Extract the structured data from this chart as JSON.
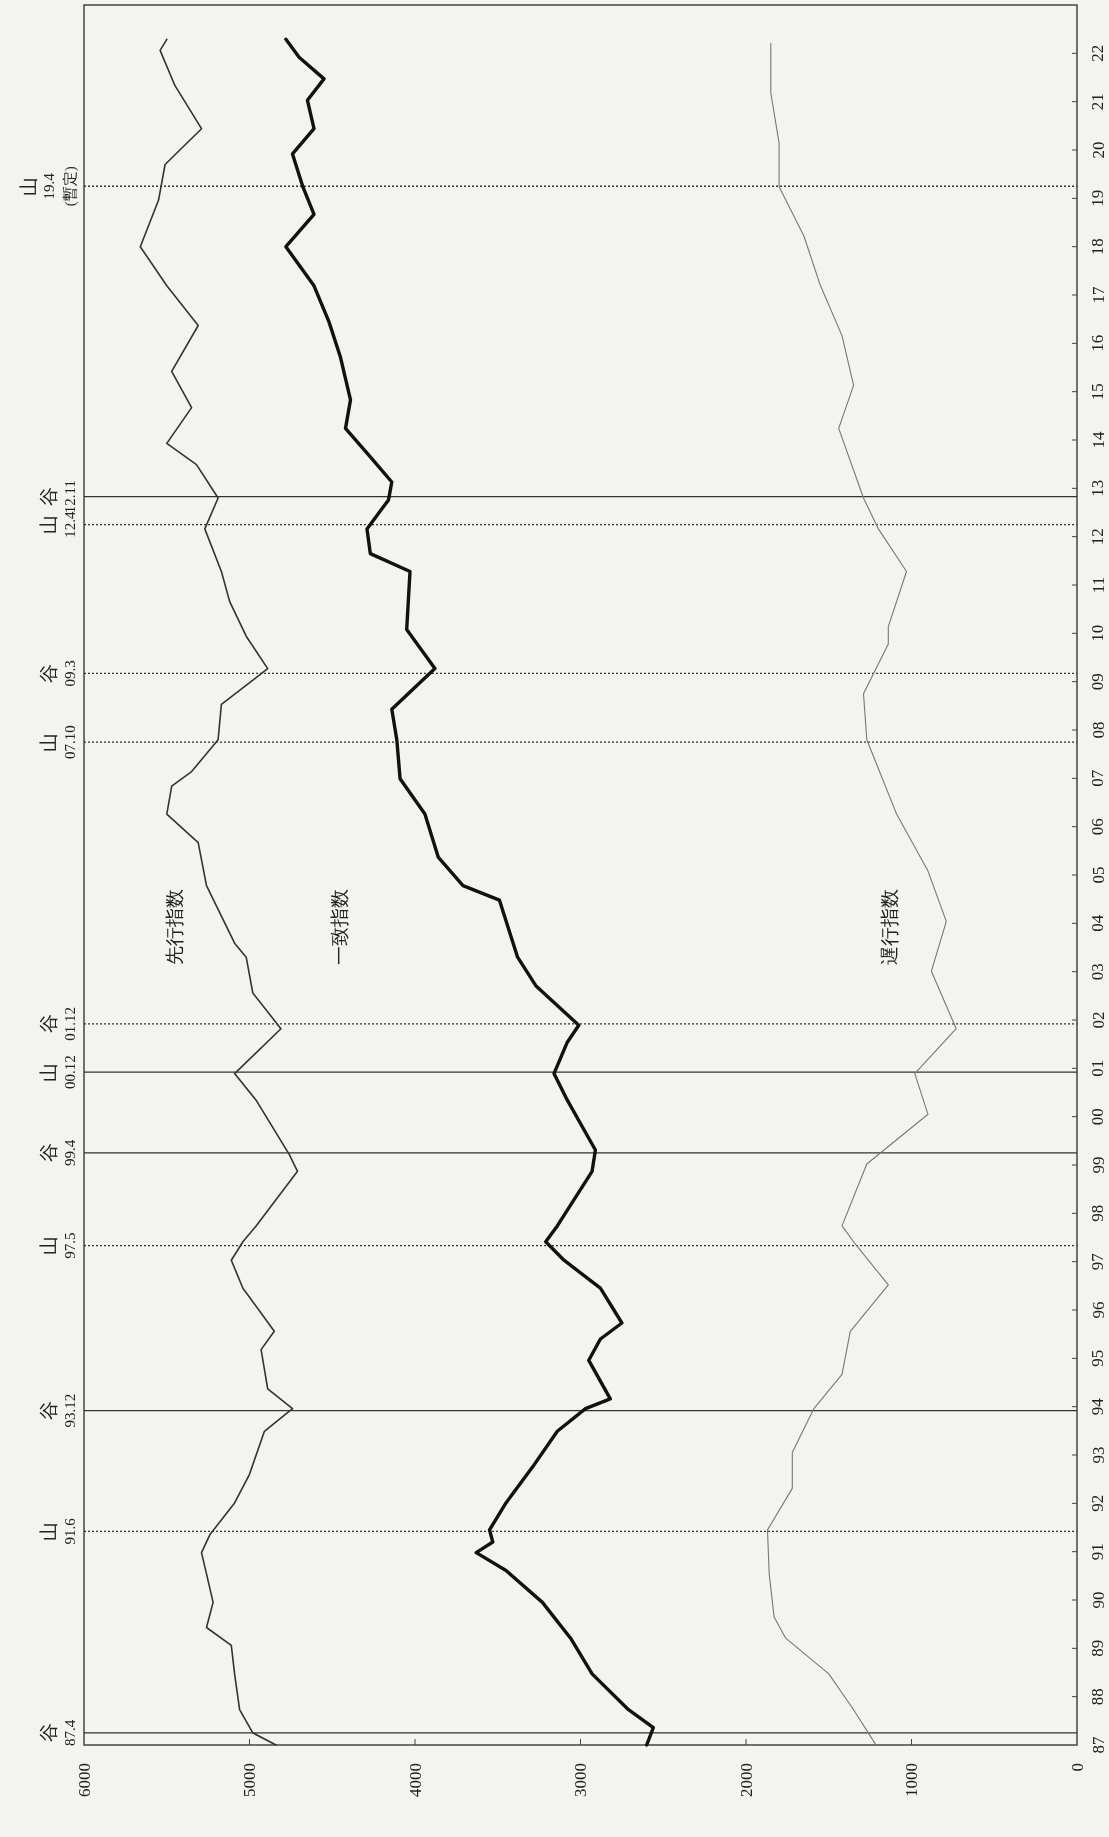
{
  "chart_data": {
    "type": "line",
    "xlim": [
      6000,
      0
    ],
    "xticks": [
      6000,
      5000,
      4000,
      3000,
      2000,
      1000,
      0
    ],
    "ylim": [
      1987,
      2023
    ],
    "yticks": [
      {
        "value": 1987,
        "label": "87"
      },
      {
        "value": 1988,
        "label": "88"
      },
      {
        "value": 1989,
        "label": "89"
      },
      {
        "value": 1990,
        "label": "90"
      },
      {
        "value": 1991,
        "label": "91"
      },
      {
        "value": 1992,
        "label": "92"
      },
      {
        "value": 1993,
        "label": "93"
      },
      {
        "value": 1994,
        "label": "94"
      },
      {
        "value": 1995,
        "label": "95"
      },
      {
        "value": 1996,
        "label": "96"
      },
      {
        "value": 1997,
        "label": "97"
      },
      {
        "value": 1998,
        "label": "98"
      },
      {
        "value": 1999,
        "label": "99"
      },
      {
        "value": 2000,
        "label": "00"
      },
      {
        "value": 2001,
        "label": "01"
      },
      {
        "value": 2002,
        "label": "02"
      },
      {
        "value": 2003,
        "label": "03"
      },
      {
        "value": 2004,
        "label": "04"
      },
      {
        "value": 2005,
        "label": "05"
      },
      {
        "value": 2006,
        "label": "06"
      },
      {
        "value": 2007,
        "label": "07"
      },
      {
        "value": 2008,
        "label": "08"
      },
      {
        "value": 2009,
        "label": "09"
      },
      {
        "value": 2010,
        "label": "10"
      },
      {
        "value": 2011,
        "label": "11"
      },
      {
        "value": 2012,
        "label": "12"
      },
      {
        "value": 2013,
        "label": "13"
      },
      {
        "value": 2014,
        "label": "14"
      },
      {
        "value": 2015,
        "label": "15"
      },
      {
        "value": 2016,
        "label": "16"
      },
      {
        "value": 2017,
        "label": "17"
      },
      {
        "value": 2018,
        "label": "18"
      },
      {
        "value": 2019,
        "label": "19"
      },
      {
        "value": 2020,
        "label": "20"
      },
      {
        "value": 2021,
        "label": "21"
      },
      {
        "value": 2022,
        "label": "22"
      }
    ],
    "grid": false,
    "legend": false,
    "marker": "none",
    "line_style": "solid",
    "series": [
      {
        "name": "先行指数",
        "color": "#333333",
        "values": [
          1987.0,
          1987.25,
          1987.73,
          1988.47,
          1989.06,
          1989.43,
          1989.95,
          1990.54,
          1990.98,
          1991.35,
          1992.01,
          1992.6,
          1993.49,
          1993.96,
          1994.37,
          1995.18,
          1995.56,
          1996.45,
          1997.03,
          1997.41,
          1997.74,
          1998.87,
          1999.22,
          2000.34,
          2000.89,
          2001.82,
          2002.56,
          2003.3,
          2003.59,
          2004.78,
          2005.67,
          2006.26,
          2006.84,
          2007.14,
          2007.8,
          2008.53,
          2009.27,
          2009.94,
          2010.66,
          2011.28,
          2012.16,
          2012.8,
          2013.49,
          2013.93,
          2014.67,
          2015.42,
          2016.37,
          2017.19,
          2018.0,
          2018.96,
          2019.7,
          2020.44,
          2021.33,
          2022.06,
          2022.29
        ],
        "x": [
          4840,
          4980,
          5060,
          5090,
          5110,
          5260,
          5220,
          5260,
          5290,
          5240,
          5090,
          5000,
          4910,
          4740,
          4890,
          4930,
          4850,
          5040,
          5110,
          5040,
          4960,
          4710,
          4760,
          4960,
          5090,
          4810,
          4980,
          5020,
          5090,
          5260,
          5310,
          5500,
          5470,
          5350,
          5190,
          5170,
          4890,
          5020,
          5120,
          5170,
          5270,
          5190,
          5320,
          5500,
          5350,
          5470,
          5310,
          5500,
          5660,
          5550,
          5510,
          5290,
          5450,
          5540,
          5500
        ]
      },
      {
        "name": "一致指数",
        "color": "#111111",
        "values": [
          1987.0,
          1987.36,
          1987.73,
          1988.47,
          1989.21,
          1989.95,
          1990.61,
          1990.98,
          1991.2,
          1991.45,
          1992.01,
          1992.75,
          1993.49,
          1993.96,
          1994.16,
          1994.96,
          1995.4,
          1995.73,
          1996.45,
          1997.03,
          1997.41,
          1997.74,
          1998.87,
          1999.31,
          2000.34,
          2000.89,
          2001.54,
          2001.89,
          2002.71,
          2003.3,
          2004.48,
          2004.78,
          2005.37,
          2006.26,
          2006.99,
          2007.8,
          2008.43,
          2009.27,
          2010.08,
          2011.28,
          2011.65,
          2012.16,
          2012.76,
          2013.13,
          2013.65,
          2014.24,
          2014.83,
          2015.71,
          2016.45,
          2017.19,
          2018.0,
          2018.67,
          2019.26,
          2019.92,
          2020.44,
          2021.03,
          2021.47,
          2021.92,
          2022.29
        ],
        "x": [
          2600,
          2560,
          2710,
          2930,
          3060,
          3230,
          3450,
          3630,
          3530,
          3550,
          3450,
          3290,
          3140,
          2970,
          2820,
          2950,
          2880,
          2750,
          2880,
          3100,
          3210,
          3140,
          2930,
          2910,
          3080,
          3160,
          3080,
          3010,
          3270,
          3380,
          3490,
          3710,
          3860,
          3940,
          4090,
          4110,
          4140,
          3880,
          4050,
          4030,
          4270,
          4290,
          4160,
          4140,
          4270,
          4420,
          4390,
          4450,
          4520,
          4610,
          4780,
          4610,
          4680,
          4740,
          4610,
          4650,
          4550,
          4700,
          4780
        ]
      },
      {
        "name": "遅行指数",
        "color": "#777777",
        "values": [
          1987.03,
          1987.73,
          1988.47,
          1989.21,
          1989.65,
          1990.54,
          1991.45,
          1992.31,
          1993.05,
          1993.96,
          1994.67,
          1995.56,
          1996.52,
          1997.41,
          1997.74,
          1999.02,
          2000.05,
          2000.89,
          2001.82,
          2003.01,
          2004.04,
          2005.08,
          2006.26,
          2007.8,
          2008.75,
          2009.78,
          2010.14,
          2011.28,
          2012.16,
          2012.8,
          2014.24,
          2015.13,
          2016.16,
          2017.19,
          2018.22,
          2019.24,
          2020.14,
          2021.18,
          2022.21
        ],
        "x": [
          1220,
          1350,
          1500,
          1760,
          1830,
          1860,
          1870,
          1720,
          1720,
          1590,
          1420,
          1370,
          1140,
          1350,
          1420,
          1270,
          900,
          980,
          730,
          880,
          790,
          900,
          1090,
          1270,
          1290,
          1140,
          1140,
          1030,
          1200,
          1290,
          1440,
          1350,
          1420,
          1550,
          1650,
          1800,
          1800,
          1850,
          1850
        ]
      }
    ],
    "ref_lines": [
      {
        "axis": "y",
        "value": 1987.25,
        "label": "谷\n87.4",
        "line_style": "solid",
        "color": "#333333"
      },
      {
        "axis": "y",
        "value": 1991.42,
        "label": "山\n91.6",
        "line_style": "dotted",
        "color": "#333333"
      },
      {
        "axis": "y",
        "value": 1993.92,
        "label": "谷\n93.12",
        "line_style": "solid",
        "color": "#333333"
      },
      {
        "axis": "y",
        "value": 1997.33,
        "label": "山\n97.5",
        "line_style": "dotted",
        "color": "#333333"
      },
      {
        "axis": "y",
        "value": 1999.25,
        "label": "谷\n99.4",
        "line_style": "solid",
        "color": "#333333"
      },
      {
        "axis": "y",
        "value": 2000.92,
        "label": "山\n00.12",
        "line_style": "solid",
        "color": "#333333"
      },
      {
        "axis": "y",
        "value": 2001.92,
        "label": "谷\n01.12",
        "line_style": "dotted",
        "color": "#333333"
      },
      {
        "axis": "y",
        "value": 2007.75,
        "label": "山\n07.10",
        "line_style": "dotted",
        "color": "#333333"
      },
      {
        "axis": "y",
        "value": 2009.17,
        "label": "谷\n09.3",
        "line_style": "dotted",
        "color": "#333333"
      },
      {
        "axis": "y",
        "value": 2012.25,
        "label": "山\n12.4",
        "line_style": "dotted",
        "color": "#333333"
      },
      {
        "axis": "y",
        "value": 2012.83,
        "label": "谷\n12.11",
        "line_style": "solid",
        "color": "#333333"
      },
      {
        "axis": "y",
        "value": 2019.25,
        "label": "山\n19.4\n(暫定)",
        "line_style": "dotted",
        "color": "#333333"
      }
    ]
  }
}
